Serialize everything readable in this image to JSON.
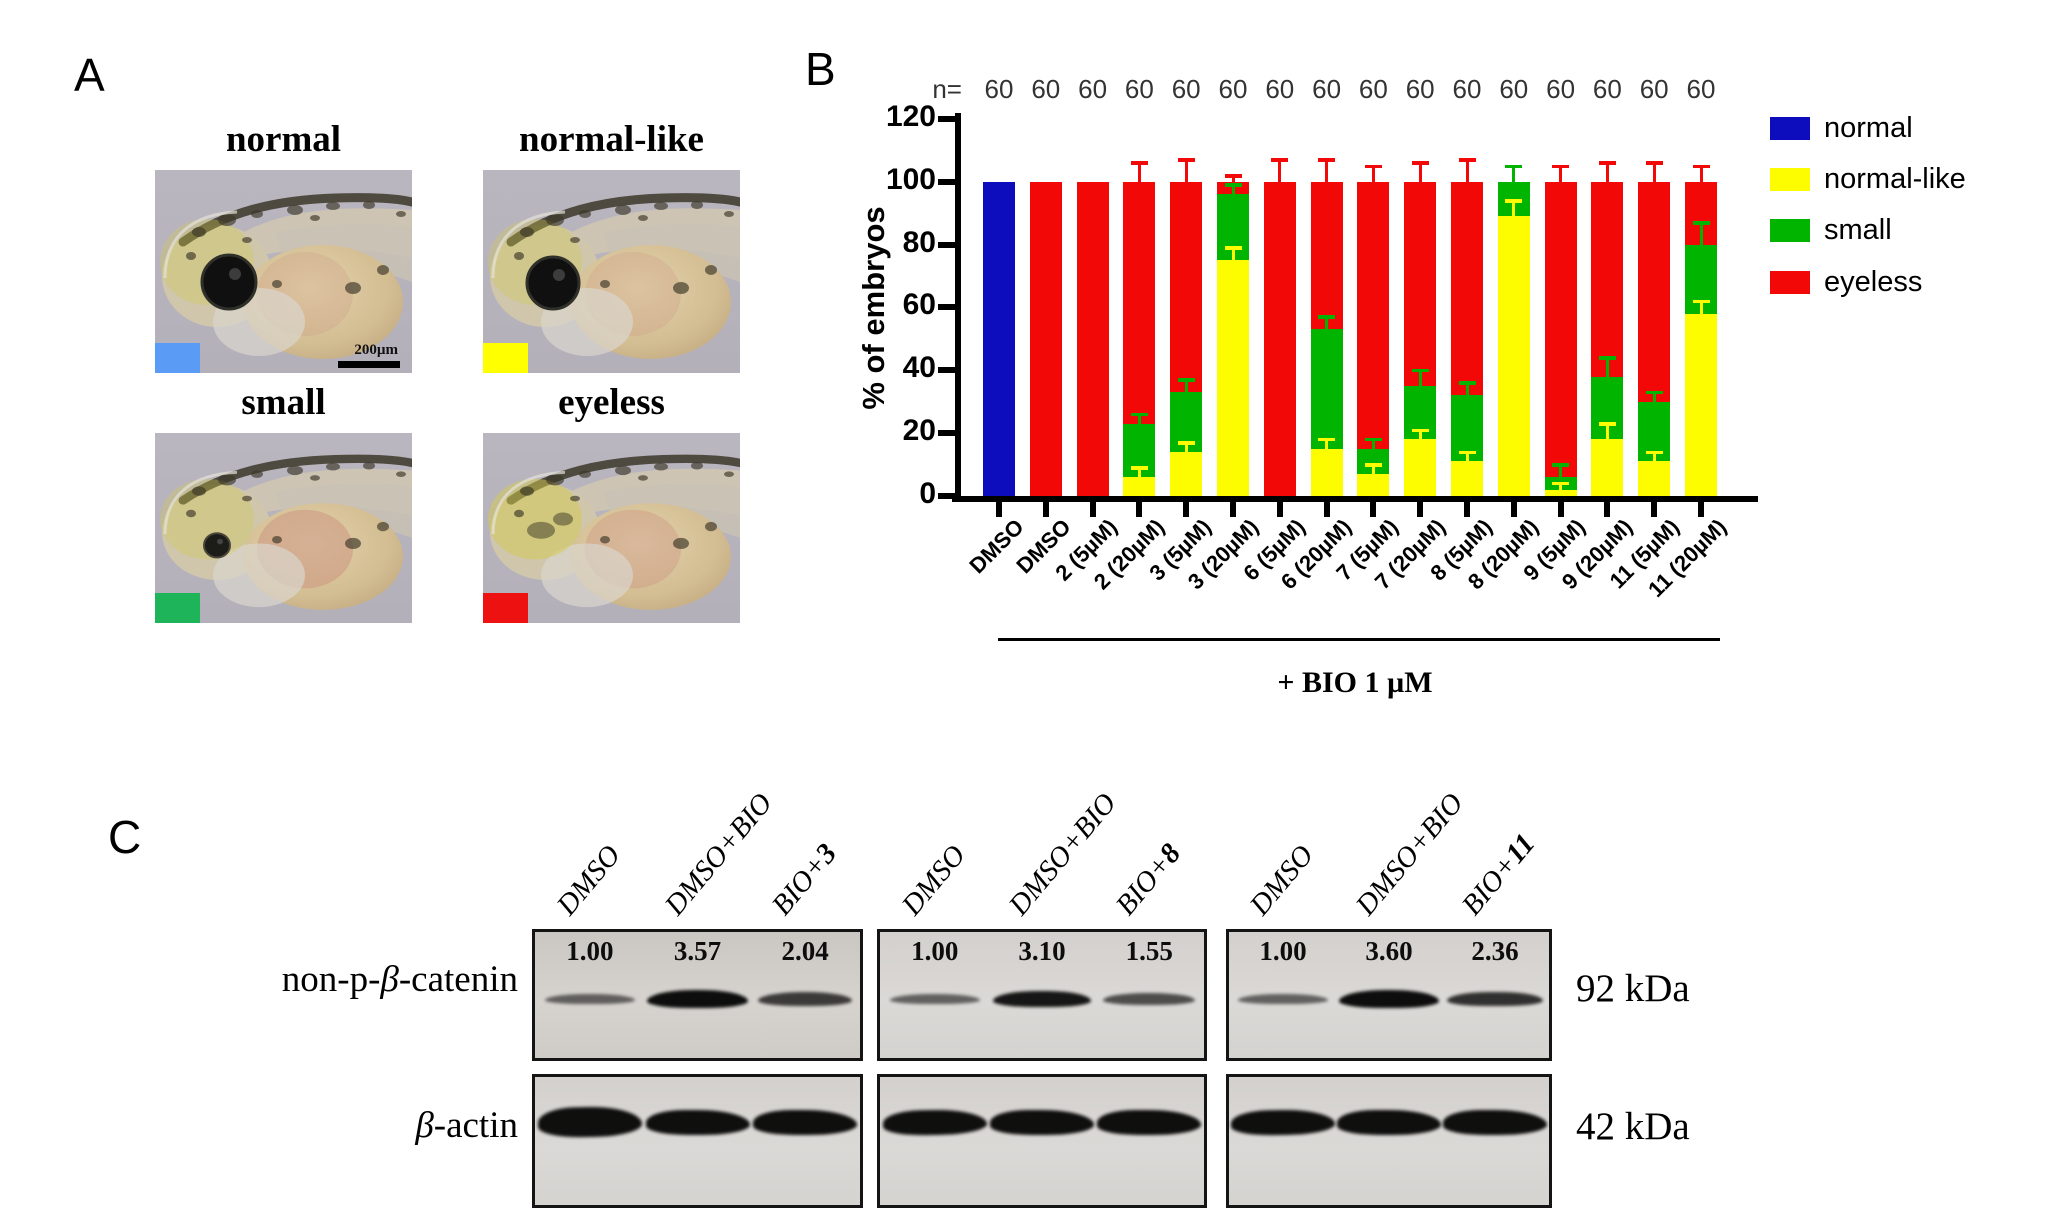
{
  "panelA": {
    "label": "A",
    "figures": [
      {
        "title": "normal",
        "variant": "normal",
        "swatch_color": "#5a9bf6",
        "scalebar": "200µm"
      },
      {
        "title": "normal-like",
        "variant": "normal-like",
        "swatch_color": "#ffff00"
      },
      {
        "title": "small",
        "variant": "small",
        "swatch_color": "#1db45a"
      },
      {
        "title": "eyeless",
        "variant": "eyeless",
        "swatch_color": "#ee1111"
      }
    ]
  },
  "panelB": {
    "label": "B",
    "n_label": "n=",
    "ylabel": "% of embryos",
    "group_line_label": "+ BIO 1 µM",
    "legend": [
      {
        "label": "normal",
        "color": "#0d0dbe"
      },
      {
        "label": "normal-like",
        "color": "#fdfd00"
      },
      {
        "label": "small",
        "color": "#00b400"
      },
      {
        "label": "eyeless",
        "color": "#f30808"
      }
    ]
  },
  "chart_data": {
    "type": "bar",
    "stacked": true,
    "title": "",
    "xlabel": "",
    "ylabel": "% of embryos",
    "ylim": [
      0,
      120
    ],
    "yticks": [
      0,
      20,
      40,
      60,
      80,
      100,
      120
    ],
    "grid": false,
    "legend_position": "right",
    "categories": [
      "DMSO",
      "DMSO",
      "2 (5µM)",
      "2 (20µM)",
      "3 (5µM)",
      "3 (20µM)",
      "6 (5µM)",
      "6 (20µM)",
      "7 (5µM)",
      "7 (20µM)",
      "8 (5µM)",
      "8 (20µM)",
      "9 (5µM)",
      "9 (20µM)",
      "11 (5µM)",
      "11 (20µM)"
    ],
    "n_values": [
      60,
      60,
      60,
      60,
      60,
      60,
      60,
      60,
      60,
      60,
      60,
      60,
      60,
      60,
      60,
      60
    ],
    "bio_annotation": "+ BIO 1 µM",
    "bio_applies_from_category_index": 1,
    "series": [
      {
        "name": "normal",
        "color": "#0d0dbe",
        "values": [
          100,
          0,
          0,
          0,
          0,
          0,
          0,
          0,
          0,
          0,
          0,
          0,
          0,
          0,
          0,
          0
        ]
      },
      {
        "name": "normal-like",
        "color": "#fdfd00",
        "values": [
          0,
          0,
          0,
          6,
          14,
          75,
          0,
          15,
          7,
          18,
          11,
          89,
          2,
          18,
          11,
          58
        ]
      },
      {
        "name": "small",
        "color": "#00b400",
        "values": [
          0,
          0,
          0,
          17,
          19,
          21,
          0,
          38,
          8,
          17,
          21,
          11,
          4,
          20,
          19,
          22
        ]
      },
      {
        "name": "eyeless",
        "color": "#f30808",
        "values": [
          0,
          100,
          100,
          77,
          67,
          4,
          100,
          47,
          85,
          65,
          68,
          0,
          94,
          62,
          70,
          20
        ]
      }
    ],
    "error_bars": {
      "normal-like": [
        0,
        0,
        0,
        3,
        3,
        4,
        0,
        3,
        3,
        3,
        3,
        5,
        2,
        5,
        3,
        4
      ],
      "small": [
        0,
        0,
        0,
        3,
        4,
        3,
        0,
        4,
        3,
        5,
        4,
        5,
        4,
        6,
        3,
        7
      ],
      "eyeless": [
        0,
        0,
        0,
        6,
        7,
        2,
        7,
        7,
        5,
        6,
        7,
        0,
        5,
        6,
        6,
        5
      ]
    }
  },
  "panelC": {
    "label": "C",
    "row_labels": [
      {
        "prefix": "non-p-",
        "beta": "β",
        "suffix": "-catenin"
      },
      {
        "prefix": "",
        "beta": "β",
        "suffix": "-actin"
      }
    ],
    "kda_labels": [
      "92 kDa",
      "42 kDa"
    ],
    "groups": [
      {
        "lanes": [
          "DMSO",
          "DMSO+BIO",
          "BIO+3"
        ],
        "values": [
          "1.00",
          "3.57",
          "2.04"
        ]
      },
      {
        "lanes": [
          "DMSO",
          "DMSO+BIO",
          "BIO+8"
        ],
        "values": [
          "1.00",
          "3.10",
          "1.55"
        ]
      },
      {
        "lanes": [
          "DMSO",
          "DMSO+BIO",
          "BIO+11"
        ],
        "values": [
          "1.00",
          "3.60",
          "2.36"
        ]
      }
    ]
  }
}
